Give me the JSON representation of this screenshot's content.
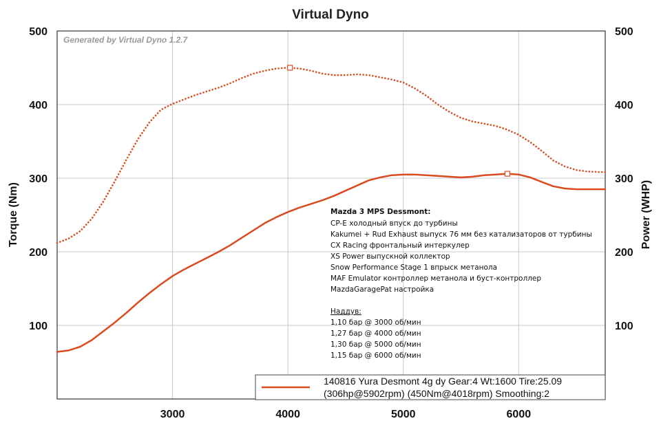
{
  "chart_data": {
    "type": "line",
    "title": "Virtual Dyno",
    "watermark": "Generated by Virtual Dyno 1.2.7",
    "xlabel": "",
    "ylabel_left": "Torque (Nm)",
    "ylabel_right": "Power (WHP)",
    "xlim": [
      2000,
      6750
    ],
    "ylim_left": [
      0,
      500
    ],
    "ylim_right": [
      0,
      500
    ],
    "x_ticks": [
      3000,
      4000,
      5000,
      6000
    ],
    "y_ticks": [
      100,
      200,
      300,
      400,
      500
    ],
    "grid": true,
    "color": "#d94a1e",
    "series": [
      {
        "style": "solid",
        "x": [
          2000,
          2100,
          2200,
          2300,
          2400,
          2500,
          2600,
          2700,
          2800,
          2900,
          3000,
          3100,
          3200,
          3300,
          3400,
          3500,
          3600,
          3700,
          3800,
          3900,
          4000,
          4100,
          4200,
          4300,
          4400,
          4500,
          4600,
          4700,
          4800,
          4900,
          5000,
          5100,
          5200,
          5300,
          5400,
          5500,
          5600,
          5700,
          5800,
          5900,
          6000,
          6100,
          6200,
          6300,
          6400,
          6500,
          6600,
          6750
        ],
        "values": [
          64,
          66,
          71,
          80,
          92,
          104,
          117,
          131,
          144,
          156,
          167,
          176,
          184,
          192,
          200,
          209,
          219,
          229,
          239,
          247,
          254,
          260,
          265,
          270,
          276,
          283,
          290,
          297,
          301,
          304,
          305,
          305,
          304,
          303,
          302,
          301,
          302,
          304,
          305,
          306,
          305,
          301,
          295,
          289,
          286,
          285,
          285,
          285
        ]
      },
      {
        "style": "dotted",
        "x": [
          2000,
          2100,
          2200,
          2300,
          2400,
          2500,
          2600,
          2700,
          2800,
          2900,
          3000,
          3100,
          3200,
          3300,
          3400,
          3500,
          3600,
          3700,
          3800,
          3900,
          4000,
          4100,
          4200,
          4300,
          4400,
          4500,
          4600,
          4700,
          4800,
          4900,
          5000,
          5100,
          5200,
          5300,
          5400,
          5500,
          5600,
          5700,
          5800,
          5900,
          6000,
          6100,
          6200,
          6300,
          6400,
          6500,
          6600,
          6750
        ],
        "values": [
          212,
          218,
          228,
          245,
          268,
          296,
          325,
          353,
          376,
          393,
          401,
          407,
          413,
          418,
          423,
          429,
          436,
          442,
          446,
          449,
          450,
          449,
          446,
          442,
          440,
          440,
          441,
          440,
          437,
          434,
          430,
          422,
          412,
          400,
          390,
          382,
          377,
          374,
          371,
          366,
          359,
          349,
          337,
          324,
          316,
          311,
          309,
          308
        ]
      }
    ],
    "markers": [
      {
        "series": 1,
        "x": 4018,
        "y": 450
      },
      {
        "series": 0,
        "x": 5902,
        "y": 306
      }
    ]
  },
  "notes": {
    "title": "Mazda 3 MPS Dessmont:",
    "lines": [
      "CP-E холодный впуск до турбины",
      "Kakumei + Rud Exhaust выпуск 76 мм без катализаторов от турбины",
      "CX Racing фронтальный интеркулер",
      "XS Power выпускной коллектор",
      "Snow Performance Stage 1 впрыск метанола",
      "MAF Emulator контроллер метанола и буст-контроллер",
      "MazdaGaragePat настройка"
    ],
    "boost_title": "Наддув:",
    "boost_lines": [
      "1,10 бар @ 3000 об/мин",
      "1,27 бар @ 4000 об/мин",
      "1,30 бар @ 5000 об/мин",
      "1,15 бар @ 6000 об/мин"
    ]
  },
  "legend": {
    "line1": "140816 Yura Desmont 4g dy Gear:4 Wt:1600 Tire:25.09",
    "line2": "(306hp@5902rpm) (450Nm@4018rpm) Smoothing:2"
  }
}
